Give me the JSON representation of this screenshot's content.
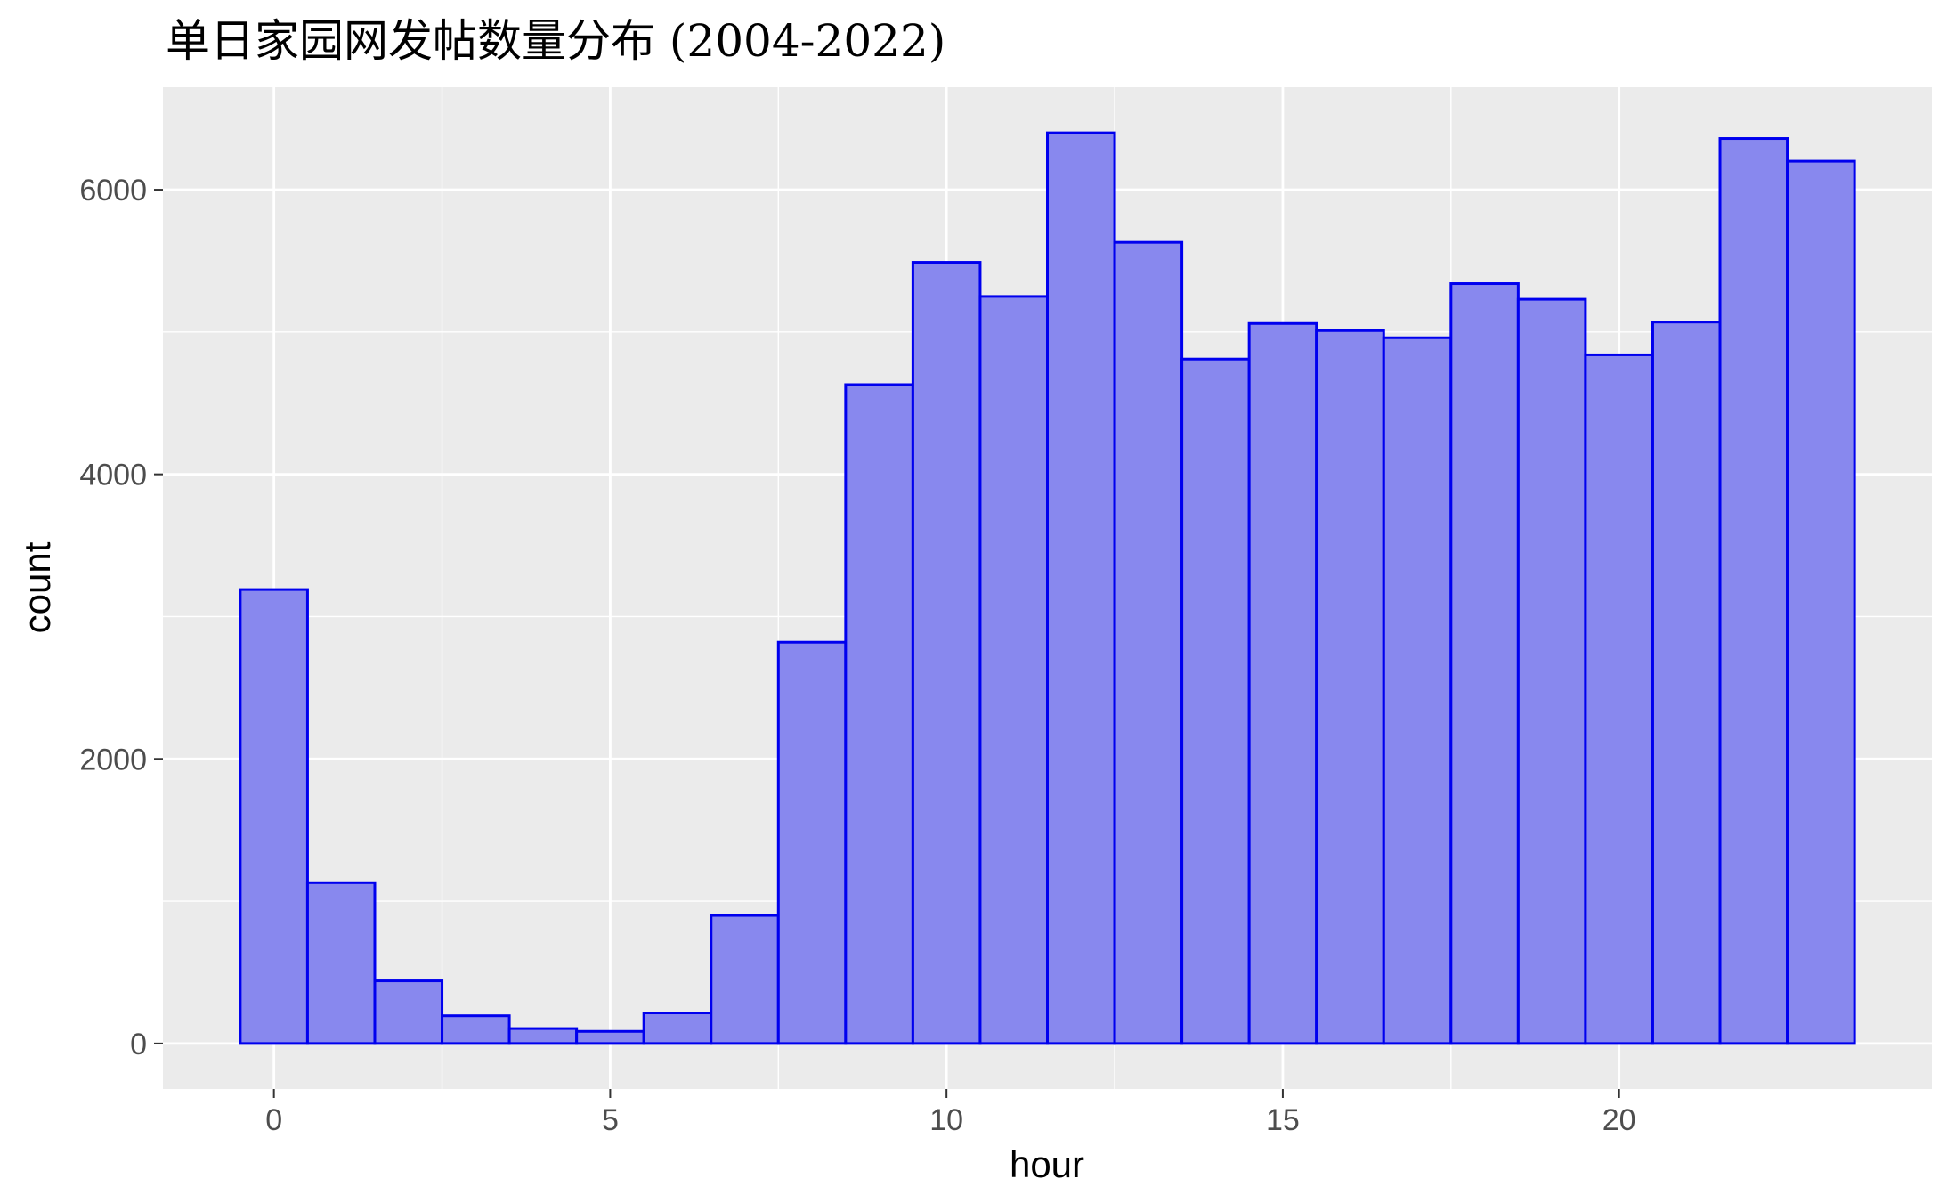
{
  "chart_data": {
    "type": "bar",
    "title": "单日家园网发帖数量分布 (2004-2022)",
    "xlabel": "hour",
    "ylabel": "count",
    "x": [
      0,
      1,
      2,
      3,
      4,
      5,
      6,
      7,
      8,
      9,
      10,
      11,
      12,
      13,
      14,
      15,
      16,
      17,
      18,
      19,
      20,
      21,
      22,
      23
    ],
    "values": [
      3190,
      1130,
      440,
      195,
      105,
      85,
      215,
      900,
      2820,
      4630,
      5490,
      5250,
      6400,
      5630,
      4810,
      5060,
      5010,
      4960,
      5340,
      5230,
      4840,
      5070,
      6360,
      6200
    ],
    "xlim": [
      -1.65,
      24.65
    ],
    "ylim": [
      -320,
      6720
    ],
    "xticks": [
      0,
      5,
      10,
      15,
      20
    ],
    "yticks": [
      0,
      2000,
      4000,
      6000
    ],
    "xtick_labels": [
      "0",
      "5",
      "10",
      "15",
      "20"
    ],
    "ytick_labels": [
      "0",
      "2000",
      "4000",
      "6000"
    ],
    "grid": true,
    "colors": {
      "panel_background": "#EBEBEB",
      "gridline": "#FFFFFF",
      "bar_fill": "#8888EE",
      "bar_outline": "#0000EE",
      "tick_label": "#4D4D4D",
      "tick_mark": "#333333"
    }
  }
}
